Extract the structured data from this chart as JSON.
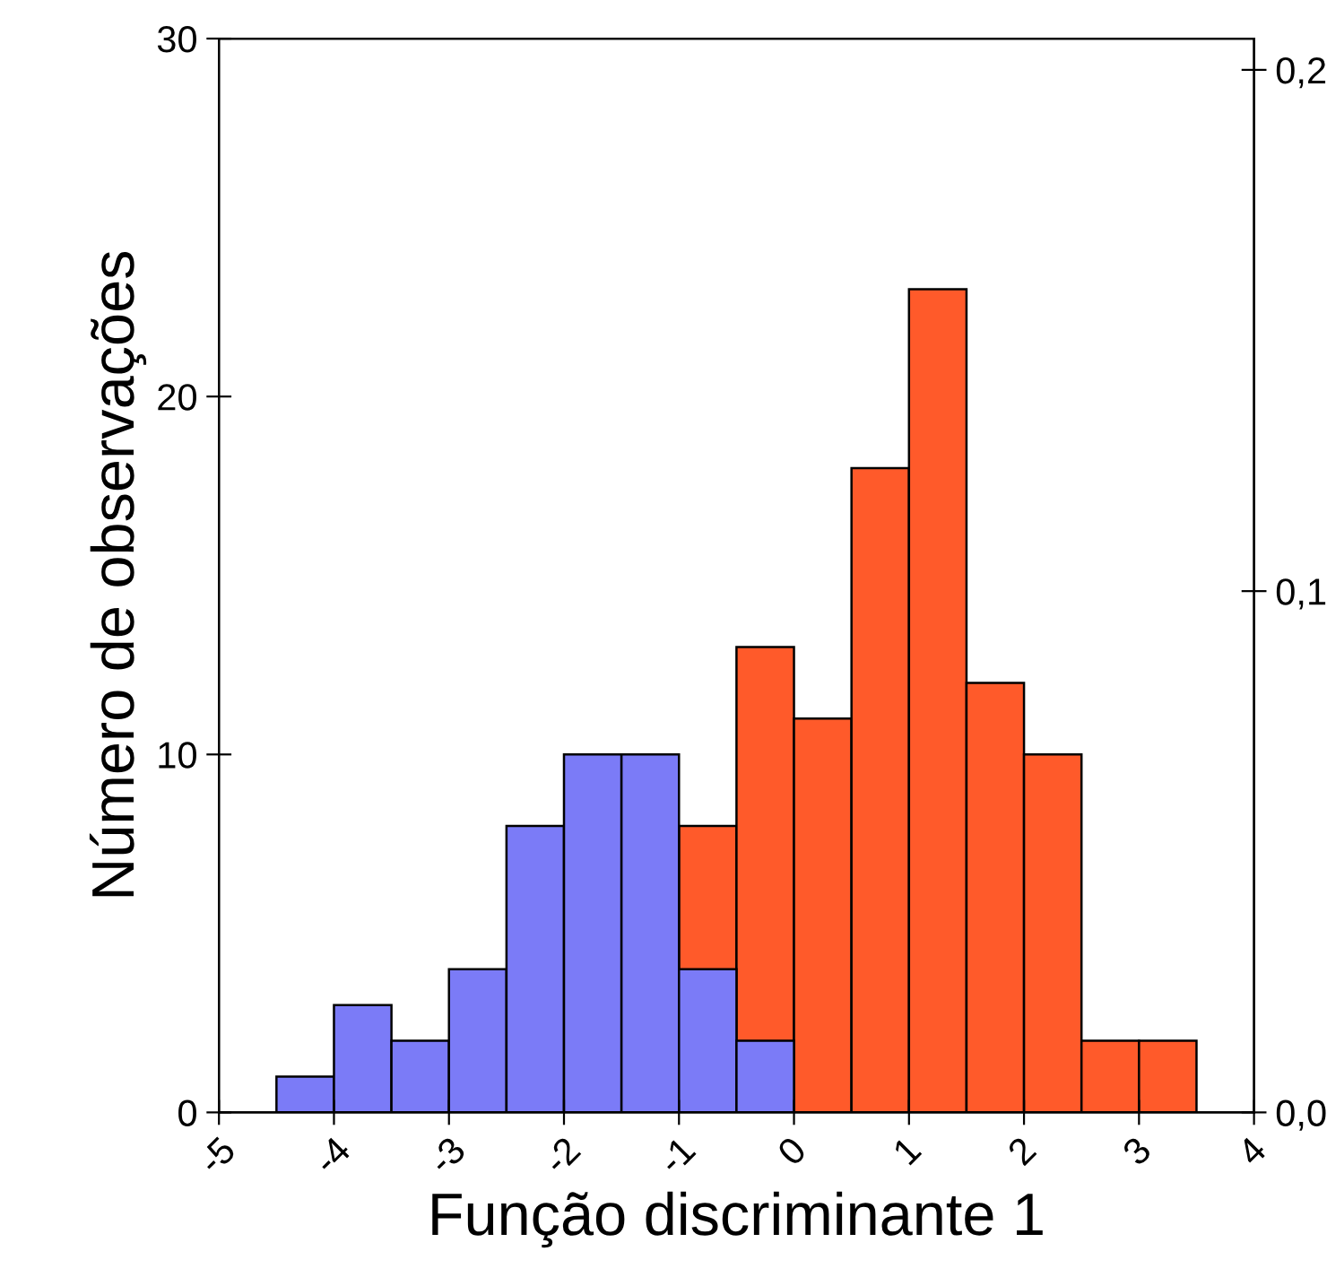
{
  "chart_data": {
    "type": "histogram",
    "xlabel": "Função discriminante 1",
    "ylabel": "Número de observações",
    "bins": [
      -4.5,
      -4.0,
      -3.5,
      -3.0,
      -2.5,
      -2.0,
      -1.5,
      -1.0,
      -0.5,
      0.0,
      0.5,
      1.0,
      1.5,
      2.0,
      2.5,
      3.0,
      3.5
    ],
    "series": [
      {
        "color": "#ff5a2a",
        "values": [
          null,
          null,
          null,
          null,
          null,
          null,
          null,
          8,
          13,
          11,
          18,
          23,
          12,
          10,
          2,
          2
        ]
      },
      {
        "color": "#7b7bf7",
        "values": [
          1,
          3,
          2,
          4,
          8,
          10,
          10,
          4,
          2,
          null,
          null,
          null,
          null,
          null,
          null,
          null
        ]
      }
    ],
    "xlim": [
      -5,
      4
    ],
    "xticks": [
      -5,
      -4,
      -3,
      -2,
      -1,
      0,
      1,
      2,
      3,
      4
    ],
    "ylim": [
      0,
      30
    ],
    "yticks": [
      0,
      10,
      20,
      30
    ],
    "y2lim": [
      0,
      0.206
    ],
    "y2ticks": [
      {
        "value": 0.0,
        "label": "0,0"
      },
      {
        "value": 0.1,
        "label": "0,1"
      },
      {
        "value": 0.2,
        "label": "0,2"
      }
    ],
    "grid": false
  }
}
